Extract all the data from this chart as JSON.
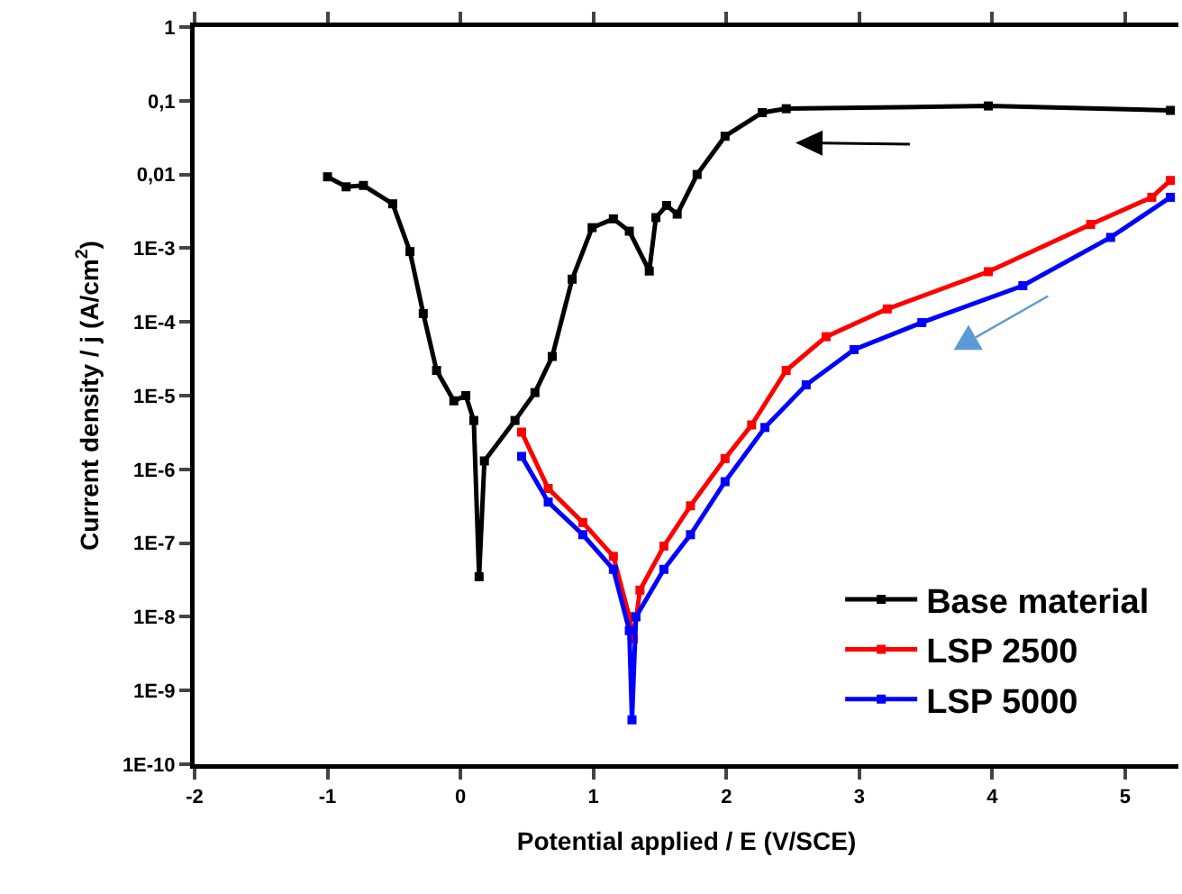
{
  "chart_data": {
    "type": "line",
    "xlabel": "Potential applied / E (V/SCE)",
    "ylabel": "Current density / j (A/cm$^{2}$)",
    "log": "y",
    "xlim": [
      -2,
      5.4
    ],
    "xticks": [
      -2,
      -1,
      0,
      1,
      2,
      3,
      4,
      5
    ],
    "ylim": [
      1e-10,
      1
    ],
    "yticks": [
      {
        "value": 1e-10,
        "label": "1E-10"
      },
      {
        "value": 1e-09,
        "label": "1E-9"
      },
      {
        "value": 1e-08,
        "label": "1E-8"
      },
      {
        "value": 1e-07,
        "label": "1E-7"
      },
      {
        "value": 1e-06,
        "label": "1E-6"
      },
      {
        "value": 1e-05,
        "label": "1E-5"
      },
      {
        "value": 0.0001,
        "label": "1E-4"
      },
      {
        "value": 0.001,
        "label": "1E-3"
      },
      {
        "value": 0.01,
        "label": "0,01"
      },
      {
        "value": 0.1,
        "label": "0,1"
      },
      {
        "value": 1,
        "label": "1"
      }
    ],
    "grid": false,
    "legend": "bottom right",
    "marker": "square",
    "line_style": "solid",
    "series": [
      {
        "name": "Base material",
        "color": "#000000",
        "x": [
          -1.0,
          -0.86,
          -0.73,
          -0.51,
          -0.38,
          -0.28,
          -0.18,
          -0.05,
          0.04,
          0.1,
          0.14,
          0.18,
          0.41,
          0.56,
          0.69,
          0.84,
          0.99,
          1.15,
          1.27,
          1.42,
          1.47,
          1.55,
          1.63,
          1.78,
          1.99,
          2.27,
          2.45,
          3.97,
          5.34
        ],
        "values": [
          0.0093,
          0.0068,
          0.0071,
          0.004,
          0.0009,
          0.00013,
          2.2e-05,
          8.5e-06,
          1e-05,
          4.6e-06,
          3.5e-08,
          1.3e-06,
          4.6e-06,
          1.1e-05,
          3.4e-05,
          0.00038,
          0.0019,
          0.0025,
          0.0017,
          0.00049,
          0.0026,
          0.0038,
          0.0029,
          0.01,
          0.033,
          0.069,
          0.078,
          0.085,
          0.074
        ]
      },
      {
        "name": "LSP 2500",
        "color": "#ff0000",
        "x": [
          0.46,
          0.66,
          0.92,
          1.15,
          1.27,
          1.3,
          1.35,
          1.53,
          1.73,
          1.99,
          2.19,
          2.45,
          2.75,
          3.21,
          3.97,
          4.74,
          5.2,
          5.34
        ],
        "values": [
          3.2e-06,
          5.5e-07,
          1.9e-07,
          6.6e-08,
          1e-08,
          5e-09,
          2.3e-08,
          9.1e-08,
          3.2e-07,
          1.4e-06,
          4e-06,
          2.2e-05,
          6.3e-05,
          0.00015,
          0.00048,
          0.0021,
          0.0049,
          0.0083
        ]
      },
      {
        "name": "LSP 5000",
        "color": "#0000ff",
        "x": [
          0.46,
          0.66,
          0.92,
          1.15,
          1.27,
          1.29,
          1.32,
          1.53,
          1.73,
          1.99,
          2.29,
          2.6,
          2.96,
          3.47,
          4.23,
          4.89,
          5.34
        ],
        "values": [
          1.5e-06,
          3.6e-07,
          1.3e-07,
          4.4e-08,
          6.5e-09,
          4e-10,
          1e-08,
          4.4e-08,
          1.3e-07,
          6.8e-07,
          3.7e-06,
          1.4e-05,
          4.2e-05,
          9.8e-05,
          0.00031,
          0.0014,
          0.0049
        ]
      }
    ]
  }
}
